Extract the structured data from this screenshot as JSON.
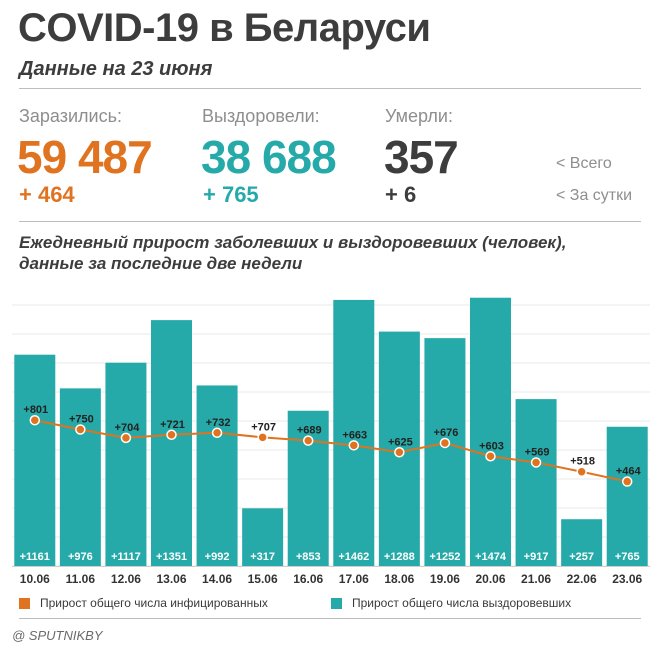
{
  "header": {
    "title": "COVID-19 в Беларуси",
    "subtitle": "Данные на 23 июня"
  },
  "stats": {
    "infected": {
      "label": "Заразились:",
      "total": "59 487",
      "delta": "+ 464"
    },
    "recovered": {
      "label": "Выздоровели:",
      "total": "38 688",
      "delta": "+ 765"
    },
    "deaths": {
      "label": "Умерли:",
      "total": "357",
      "delta": "+ 6"
    },
    "hint_total": "<  Всего",
    "hint_daily": "<  За сутки"
  },
  "colors": {
    "infected": "#e07320",
    "recovered": "#26aaa9",
    "deaths": "#3d3d3d"
  },
  "chart_data": {
    "type": "bar",
    "title": "Ежедневный прирост заболевших и выздоровевших (человек),\nданные за последние две недели",
    "categories": [
      "10.06",
      "11.06",
      "12.06",
      "13.06",
      "14.06",
      "15.06",
      "16.06",
      "17.06",
      "18.06",
      "19.06",
      "20.06",
      "21.06",
      "22.06",
      "23.06"
    ],
    "series": [
      {
        "name": "Прирост общего числа выздоровевших",
        "type": "bar",
        "values": [
          1161,
          976,
          1117,
          1351,
          992,
          317,
          853,
          1462,
          1288,
          1252,
          1474,
          917,
          257,
          765
        ],
        "labels": [
          "+1161",
          "+976",
          "+1117",
          "+1351",
          "+992",
          "+317",
          "+853",
          "+1462",
          "+1288",
          "+1252",
          "+1474",
          "+917",
          "+257",
          "+765"
        ]
      },
      {
        "name": "Прирост общего числа инфицированных",
        "type": "line",
        "values": [
          801,
          750,
          704,
          721,
          732,
          707,
          689,
          663,
          625,
          676,
          603,
          569,
          518,
          464
        ],
        "labels": [
          "+801",
          "+750",
          "+704",
          "+721",
          "+732",
          "+707",
          "+689",
          "+663",
          "+625",
          "+676",
          "+603",
          "+569",
          "+518",
          "+464"
        ]
      }
    ],
    "grid": true,
    "legend": "bottom"
  },
  "credit": "@ SPUTNIKBY"
}
